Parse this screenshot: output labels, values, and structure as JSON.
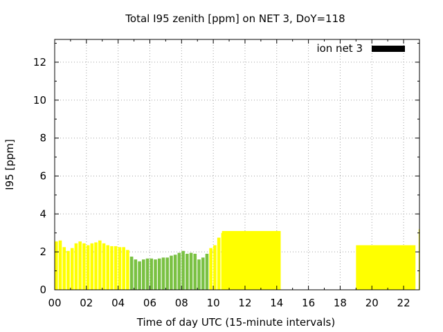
{
  "chart_data": {
    "type": "bar",
    "title": "Total I95 zenith [ppm] on NET 3, DoY=118",
    "xlabel": "Time of day UTC (15-minute intervals)",
    "ylabel": "I95 [ppm]",
    "xlim": [
      0,
      23
    ],
    "ylim": [
      0,
      13.2
    ],
    "x_ticks": [
      "00",
      "02",
      "04",
      "06",
      "08",
      "10",
      "12",
      "14",
      "16",
      "18",
      "20",
      "22"
    ],
    "y_ticks": [
      "0",
      "2",
      "4",
      "6",
      "8",
      "10",
      "12"
    ],
    "grid": true,
    "legend_position": "top-right",
    "legend": [
      {
        "label": "ion net 3",
        "color": "#000000"
      }
    ],
    "colors": {
      "low": "#ffff00",
      "mid": "#7ac143"
    },
    "bar_width_hours": 0.2,
    "bars": [
      {
        "t": 0.0,
        "v": 2.55,
        "c": "low"
      },
      {
        "t": 0.25,
        "v": 2.6,
        "c": "low"
      },
      {
        "t": 0.5,
        "v": 2.25,
        "c": "low"
      },
      {
        "t": 0.75,
        "v": 2.05,
        "c": "low"
      },
      {
        "t": 1.0,
        "v": 2.2,
        "c": "low"
      },
      {
        "t": 1.25,
        "v": 2.45,
        "c": "low"
      },
      {
        "t": 1.5,
        "v": 2.55,
        "c": "low"
      },
      {
        "t": 1.75,
        "v": 2.45,
        "c": "low"
      },
      {
        "t": 2.0,
        "v": 2.35,
        "c": "low"
      },
      {
        "t": 2.25,
        "v": 2.45,
        "c": "low"
      },
      {
        "t": 2.5,
        "v": 2.5,
        "c": "low"
      },
      {
        "t": 2.75,
        "v": 2.6,
        "c": "low"
      },
      {
        "t": 3.0,
        "v": 2.45,
        "c": "low"
      },
      {
        "t": 3.25,
        "v": 2.35,
        "c": "low"
      },
      {
        "t": 3.5,
        "v": 2.3,
        "c": "low"
      },
      {
        "t": 3.75,
        "v": 2.3,
        "c": "low"
      },
      {
        "t": 4.0,
        "v": 2.25,
        "c": "low"
      },
      {
        "t": 4.25,
        "v": 2.25,
        "c": "low"
      },
      {
        "t": 4.5,
        "v": 2.1,
        "c": "low"
      },
      {
        "t": 4.75,
        "v": 1.75,
        "c": "mid"
      },
      {
        "t": 5.0,
        "v": 1.6,
        "c": "mid"
      },
      {
        "t": 5.25,
        "v": 1.5,
        "c": "mid"
      },
      {
        "t": 5.5,
        "v": 1.6,
        "c": "mid"
      },
      {
        "t": 5.75,
        "v": 1.65,
        "c": "mid"
      },
      {
        "t": 6.0,
        "v": 1.65,
        "c": "mid"
      },
      {
        "t": 6.25,
        "v": 1.6,
        "c": "mid"
      },
      {
        "t": 6.5,
        "v": 1.65,
        "c": "mid"
      },
      {
        "t": 6.75,
        "v": 1.7,
        "c": "mid"
      },
      {
        "t": 7.0,
        "v": 1.7,
        "c": "mid"
      },
      {
        "t": 7.25,
        "v": 1.8,
        "c": "mid"
      },
      {
        "t": 7.5,
        "v": 1.85,
        "c": "mid"
      },
      {
        "t": 7.75,
        "v": 1.95,
        "c": "mid"
      },
      {
        "t": 8.0,
        "v": 2.05,
        "c": "mid"
      },
      {
        "t": 8.25,
        "v": 1.9,
        "c": "mid"
      },
      {
        "t": 8.5,
        "v": 1.95,
        "c": "mid"
      },
      {
        "t": 8.75,
        "v": 1.9,
        "c": "mid"
      },
      {
        "t": 9.0,
        "v": 1.6,
        "c": "mid"
      },
      {
        "t": 9.25,
        "v": 1.7,
        "c": "mid"
      },
      {
        "t": 9.5,
        "v": 1.9,
        "c": "mid"
      },
      {
        "t": 9.75,
        "v": 2.2,
        "c": "low"
      },
      {
        "t": 10.0,
        "v": 2.35,
        "c": "low"
      },
      {
        "t": 10.25,
        "v": 2.75,
        "c": "low"
      },
      {
        "t": 10.5,
        "v": 3.0,
        "c": "low"
      }
    ],
    "blocks": [
      {
        "t_start": 10.55,
        "t_end": 14.25,
        "v": 3.1,
        "c": "low"
      },
      {
        "t_start": 19.0,
        "t_end": 22.75,
        "v": 2.35,
        "c": "low"
      },
      {
        "t_start": 22.95,
        "t_end": 23.0,
        "v": 3.2,
        "c": "low"
      }
    ]
  }
}
